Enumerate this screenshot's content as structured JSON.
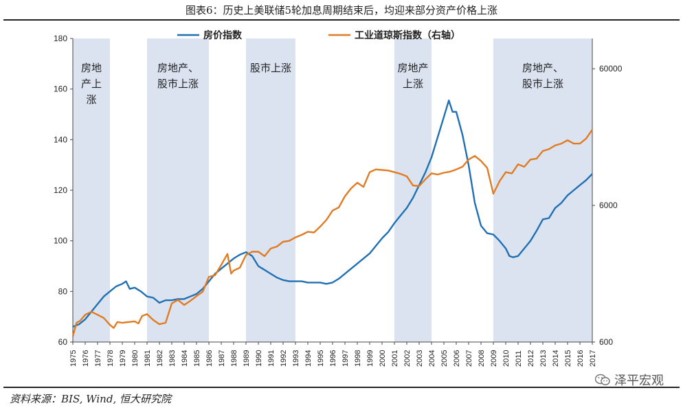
{
  "page": {
    "title": "图表6：历史上美联储5轮加息周期结束后，均迎来部分资产价格上涨",
    "source": "资料来源：BIS, Wind, 恒大研究院",
    "watermark": "泽平宏观",
    "watermark_icon": "wechat-icon"
  },
  "chart_data": {
    "type": "line",
    "title": "图表6：历史上美联储5轮加息周期结束后，均迎来部分资产价格上涨",
    "x_categories": [
      "1975",
      "1976",
      "1977",
      "1978",
      "1979",
      "1980",
      "1981",
      "1982",
      "1983",
      "1984",
      "1985",
      "1986",
      "1987",
      "1988",
      "1989",
      "1990",
      "1991",
      "1992",
      "1993",
      "1994",
      "1995",
      "1996",
      "1997",
      "1998",
      "1999",
      "2000",
      "2001",
      "2002",
      "2003",
      "2004",
      "2005",
      "2006",
      "2007",
      "2008",
      "2009",
      "2010",
      "2011",
      "2012",
      "2013",
      "2014",
      "2015",
      "2016",
      "2017"
    ],
    "left_axis": {
      "ylim": [
        60,
        180
      ],
      "ticks": [
        60,
        80,
        100,
        120,
        140,
        160,
        180
      ]
    },
    "right_axis": {
      "scale": "log",
      "ylim": [
        600,
        100000
      ],
      "ticks": [
        600,
        6000,
        60000
      ],
      "tick_labels": [
        "600",
        "6000",
        "60000"
      ]
    },
    "legend_position": "top-center",
    "series": [
      {
        "name": "房价指数",
        "axis": "left",
        "color": "#1f6fb2",
        "points": [
          [
            1975.0,
            66
          ],
          [
            1975.5,
            67
          ],
          [
            1976.0,
            69
          ],
          [
            1976.5,
            72
          ],
          [
            1977.0,
            75
          ],
          [
            1977.5,
            78
          ],
          [
            1978.0,
            80
          ],
          [
            1978.5,
            82
          ],
          [
            1979.0,
            83
          ],
          [
            1979.3,
            84
          ],
          [
            1979.6,
            81
          ],
          [
            1980.0,
            81.5
          ],
          [
            1980.5,
            80
          ],
          [
            1981.0,
            78
          ],
          [
            1981.5,
            77.5
          ],
          [
            1982.0,
            75.5
          ],
          [
            1982.5,
            76.5
          ],
          [
            1983.0,
            76.5
          ],
          [
            1983.5,
            77
          ],
          [
            1984.0,
            77
          ],
          [
            1984.5,
            78
          ],
          [
            1985.0,
            79
          ],
          [
            1985.5,
            81
          ],
          [
            1986.0,
            84
          ],
          [
            1986.5,
            87
          ],
          [
            1987.0,
            89
          ],
          [
            1987.5,
            91
          ],
          [
            1988.0,
            93
          ],
          [
            1988.5,
            94.5
          ],
          [
            1989.0,
            95.5
          ],
          [
            1989.5,
            94
          ],
          [
            1990.0,
            90
          ],
          [
            1990.5,
            88.5
          ],
          [
            1991.0,
            87
          ],
          [
            1991.5,
            85.5
          ],
          [
            1992.0,
            84.5
          ],
          [
            1992.5,
            84
          ],
          [
            1993.0,
            84
          ],
          [
            1993.5,
            84
          ],
          [
            1994.0,
            83.5
          ],
          [
            1994.5,
            83.5
          ],
          [
            1995.0,
            83.5
          ],
          [
            1995.5,
            83
          ],
          [
            1996.0,
            83.5
          ],
          [
            1996.5,
            85
          ],
          [
            1997.0,
            87
          ],
          [
            1997.5,
            89
          ],
          [
            1998.0,
            91
          ],
          [
            1998.5,
            93
          ],
          [
            1999.0,
            95
          ],
          [
            1999.5,
            98
          ],
          [
            2000.0,
            101
          ],
          [
            2000.5,
            103.5
          ],
          [
            2001.0,
            107
          ],
          [
            2001.5,
            110
          ],
          [
            2002.0,
            113
          ],
          [
            2002.5,
            117
          ],
          [
            2003.0,
            122
          ],
          [
            2003.5,
            127
          ],
          [
            2004.0,
            133
          ],
          [
            2004.5,
            141
          ],
          [
            2005.0,
            149
          ],
          [
            2005.4,
            155.5
          ],
          [
            2005.7,
            151
          ],
          [
            2006.0,
            151
          ],
          [
            2006.5,
            142
          ],
          [
            2007.0,
            130
          ],
          [
            2007.5,
            115
          ],
          [
            2008.0,
            106
          ],
          [
            2008.5,
            103
          ],
          [
            2009.0,
            102.5
          ],
          [
            2009.5,
            100
          ],
          [
            2010.0,
            97
          ],
          [
            2010.3,
            94
          ],
          [
            2010.6,
            93.5
          ],
          [
            2011.0,
            94
          ],
          [
            2011.5,
            97
          ],
          [
            2012.0,
            100
          ],
          [
            2012.5,
            104
          ],
          [
            2013.0,
            108.5
          ],
          [
            2013.5,
            109
          ],
          [
            2014.0,
            113
          ],
          [
            2014.5,
            115
          ],
          [
            2015.0,
            118
          ],
          [
            2015.5,
            120
          ],
          [
            2016.0,
            122
          ],
          [
            2016.5,
            124
          ],
          [
            2017.0,
            126.5
          ]
        ]
      },
      {
        "name": "工业道琼斯指数（右轴）",
        "axis": "right",
        "color": "#e07b22",
        "points": [
          [
            1975.0,
            660
          ],
          [
            1975.3,
            830
          ],
          [
            1975.6,
            860
          ],
          [
            1976.0,
            950
          ],
          [
            1976.5,
            1000
          ],
          [
            1977.0,
            950
          ],
          [
            1977.5,
            900
          ],
          [
            1978.0,
            800
          ],
          [
            1978.3,
            760
          ],
          [
            1978.6,
            840
          ],
          [
            1979.0,
            830
          ],
          [
            1979.5,
            840
          ],
          [
            1980.0,
            850
          ],
          [
            1980.3,
            820
          ],
          [
            1980.6,
            930
          ],
          [
            1981.0,
            960
          ],
          [
            1981.5,
            870
          ],
          [
            1982.0,
            810
          ],
          [
            1982.5,
            830
          ],
          [
            1983.0,
            1150
          ],
          [
            1983.5,
            1220
          ],
          [
            1984.0,
            1120
          ],
          [
            1984.5,
            1200
          ],
          [
            1985.0,
            1300
          ],
          [
            1985.5,
            1400
          ],
          [
            1986.0,
            1800
          ],
          [
            1986.5,
            1850
          ],
          [
            1987.0,
            2200
          ],
          [
            1987.5,
            2650
          ],
          [
            1987.8,
            1900
          ],
          [
            1988.0,
            2000
          ],
          [
            1988.5,
            2100
          ],
          [
            1989.0,
            2600
          ],
          [
            1989.5,
            2750
          ],
          [
            1990.0,
            2750
          ],
          [
            1990.5,
            2550
          ],
          [
            1991.0,
            2900
          ],
          [
            1991.5,
            3000
          ],
          [
            1992.0,
            3250
          ],
          [
            1992.5,
            3300
          ],
          [
            1993.0,
            3500
          ],
          [
            1993.5,
            3650
          ],
          [
            1994.0,
            3850
          ],
          [
            1994.5,
            3800
          ],
          [
            1995.0,
            4200
          ],
          [
            1995.5,
            4700
          ],
          [
            1996.0,
            5500
          ],
          [
            1996.5,
            5800
          ],
          [
            1997.0,
            7000
          ],
          [
            1997.5,
            8000
          ],
          [
            1998.0,
            8800
          ],
          [
            1998.5,
            8200
          ],
          [
            1999.0,
            10500
          ],
          [
            1999.5,
            11000
          ],
          [
            2000.0,
            10900
          ],
          [
            2000.5,
            10800
          ],
          [
            2001.0,
            10500
          ],
          [
            2001.5,
            10200
          ],
          [
            2002.0,
            9800
          ],
          [
            2002.5,
            8400
          ],
          [
            2003.0,
            8300
          ],
          [
            2003.5,
            9300
          ],
          [
            2004.0,
            10300
          ],
          [
            2004.5,
            10100
          ],
          [
            2005.0,
            10400
          ],
          [
            2005.5,
            10600
          ],
          [
            2006.0,
            11000
          ],
          [
            2006.5,
            11500
          ],
          [
            2007.0,
            13000
          ],
          [
            2007.5,
            13800
          ],
          [
            2008.0,
            12700
          ],
          [
            2008.5,
            11300
          ],
          [
            2009.0,
            7300
          ],
          [
            2009.5,
            9000
          ],
          [
            2010.0,
            10500
          ],
          [
            2010.5,
            10300
          ],
          [
            2011.0,
            12000
          ],
          [
            2011.5,
            11500
          ],
          [
            2012.0,
            13000
          ],
          [
            2012.5,
            13200
          ],
          [
            2013.0,
            15000
          ],
          [
            2013.5,
            15500
          ],
          [
            2014.0,
            16500
          ],
          [
            2014.5,
            17000
          ],
          [
            2015.0,
            18000
          ],
          [
            2015.5,
            17000
          ],
          [
            2016.0,
            17000
          ],
          [
            2016.5,
            18500
          ],
          [
            2017.0,
            21500
          ]
        ]
      }
    ],
    "shaded_periods": [
      {
        "start": 1975.0,
        "end": 1978.0,
        "label": "房地\n产上\n涨"
      },
      {
        "start": 1981.0,
        "end": 1986.0,
        "label": "房地产、\n股市上涨"
      },
      {
        "start": 1989.0,
        "end": 1993.0,
        "label": "股市上涨"
      },
      {
        "start": 2001.0,
        "end": 2004.0,
        "label": "房地产\n上涨"
      },
      {
        "start": 2009.0,
        "end": 2017.0,
        "label": "房地产、\n股市上涨"
      }
    ],
    "shade_color": "#dbe3f1"
  }
}
